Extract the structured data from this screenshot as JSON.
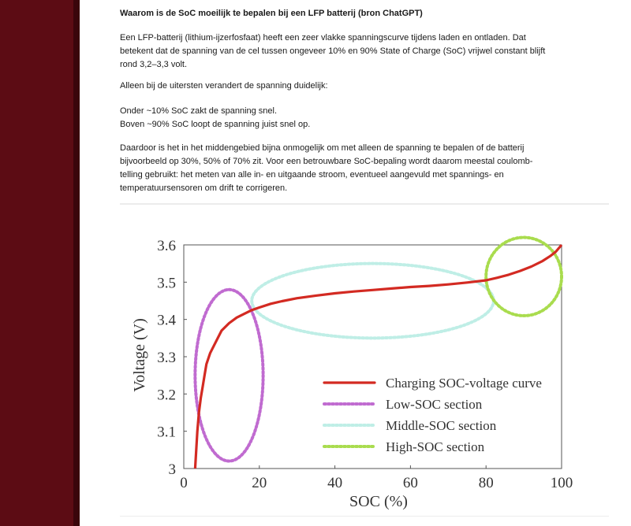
{
  "article": {
    "title": "Waarom is de SoC moeilijk te bepalen bij een LFP batterij (bron ChatGPT)",
    "paragraph1": [
      "Een LFP-batterij (lithium-ijzerfosfaat) heeft een zeer vlakke spanningscurve tijdens laden en ontladen. Dat",
      "betekent dat de spanning van de cel tussen ongeveer 10% en 90% State of Charge (SoC) vrijwel constant blijft",
      "rond 3,2–3,3 volt."
    ],
    "paragraph2": "Alleen bij de uitersten verandert de spanning duidelijk:",
    "bullet1": "Onder ~10% SoC zakt de spanning snel.",
    "bullet2": "Boven ~90% SoC loopt de spanning juist snel op.",
    "paragraph3": [
      "Daardoor is het in het middengebied bijna onmogelijk om met alleen de spanning te bepalen of de batterij",
      "bijvoorbeeld op 30%, 50% of 70% zit. Voor een betrouwbare SoC-bepaling wordt daarom meestal coulomb-",
      "telling gebruikt: het meten van alle in- en uitgaande stroom, eventueel aangevuld met spannings- en",
      "temperatuursensoren om drift te corrigeren."
    ]
  },
  "chart_data": {
    "type": "line",
    "xlabel": "SOC (%)",
    "ylabel": "Voltage (V)",
    "xlim": [
      0,
      100
    ],
    "ylim": [
      3.0,
      3.6
    ],
    "x_ticks": [
      "0",
      "20",
      "40",
      "60",
      "80",
      "100"
    ],
    "y_ticks": [
      "3",
      "3.1",
      "3.2",
      "3.3",
      "3.4",
      "3.5",
      "3.6"
    ],
    "legend_position": "bottom-right",
    "series": [
      {
        "name": "Charging SOC-voltage curve",
        "color": "#d32a22",
        "x": [
          3,
          3.3,
          3.6,
          4,
          4.5,
          5,
          5.5,
          6,
          7,
          8,
          9,
          10,
          12,
          14,
          16,
          18,
          20,
          23,
          26,
          30,
          35,
          40,
          45,
          50,
          55,
          60,
          65,
          70,
          75,
          80,
          83,
          86,
          89,
          92,
          95,
          97,
          98.5,
          100
        ],
        "y": [
          3.0,
          3.05,
          3.1,
          3.15,
          3.19,
          3.22,
          3.25,
          3.28,
          3.31,
          3.33,
          3.35,
          3.37,
          3.39,
          3.405,
          3.415,
          3.425,
          3.432,
          3.442,
          3.449,
          3.457,
          3.464,
          3.47,
          3.475,
          3.479,
          3.483,
          3.487,
          3.49,
          3.494,
          3.499,
          3.505,
          3.512,
          3.52,
          3.53,
          3.542,
          3.557,
          3.57,
          3.582,
          3.6
        ]
      }
    ],
    "sections": [
      {
        "name": "Low-SOC section",
        "color": "#c06bd0",
        "cx": 12,
        "cy": 3.25,
        "rx": 9,
        "ry": 0.23
      },
      {
        "name": "Middle-SOC section",
        "color": "#bfeee6",
        "cx": 50,
        "cy": 3.45,
        "rx": 32,
        "ry": 0.1
      },
      {
        "name": "High-SOC section",
        "color": "#a9dc4e",
        "cx": 90,
        "cy": 3.515,
        "rx": 10,
        "ry": 0.105
      }
    ]
  }
}
